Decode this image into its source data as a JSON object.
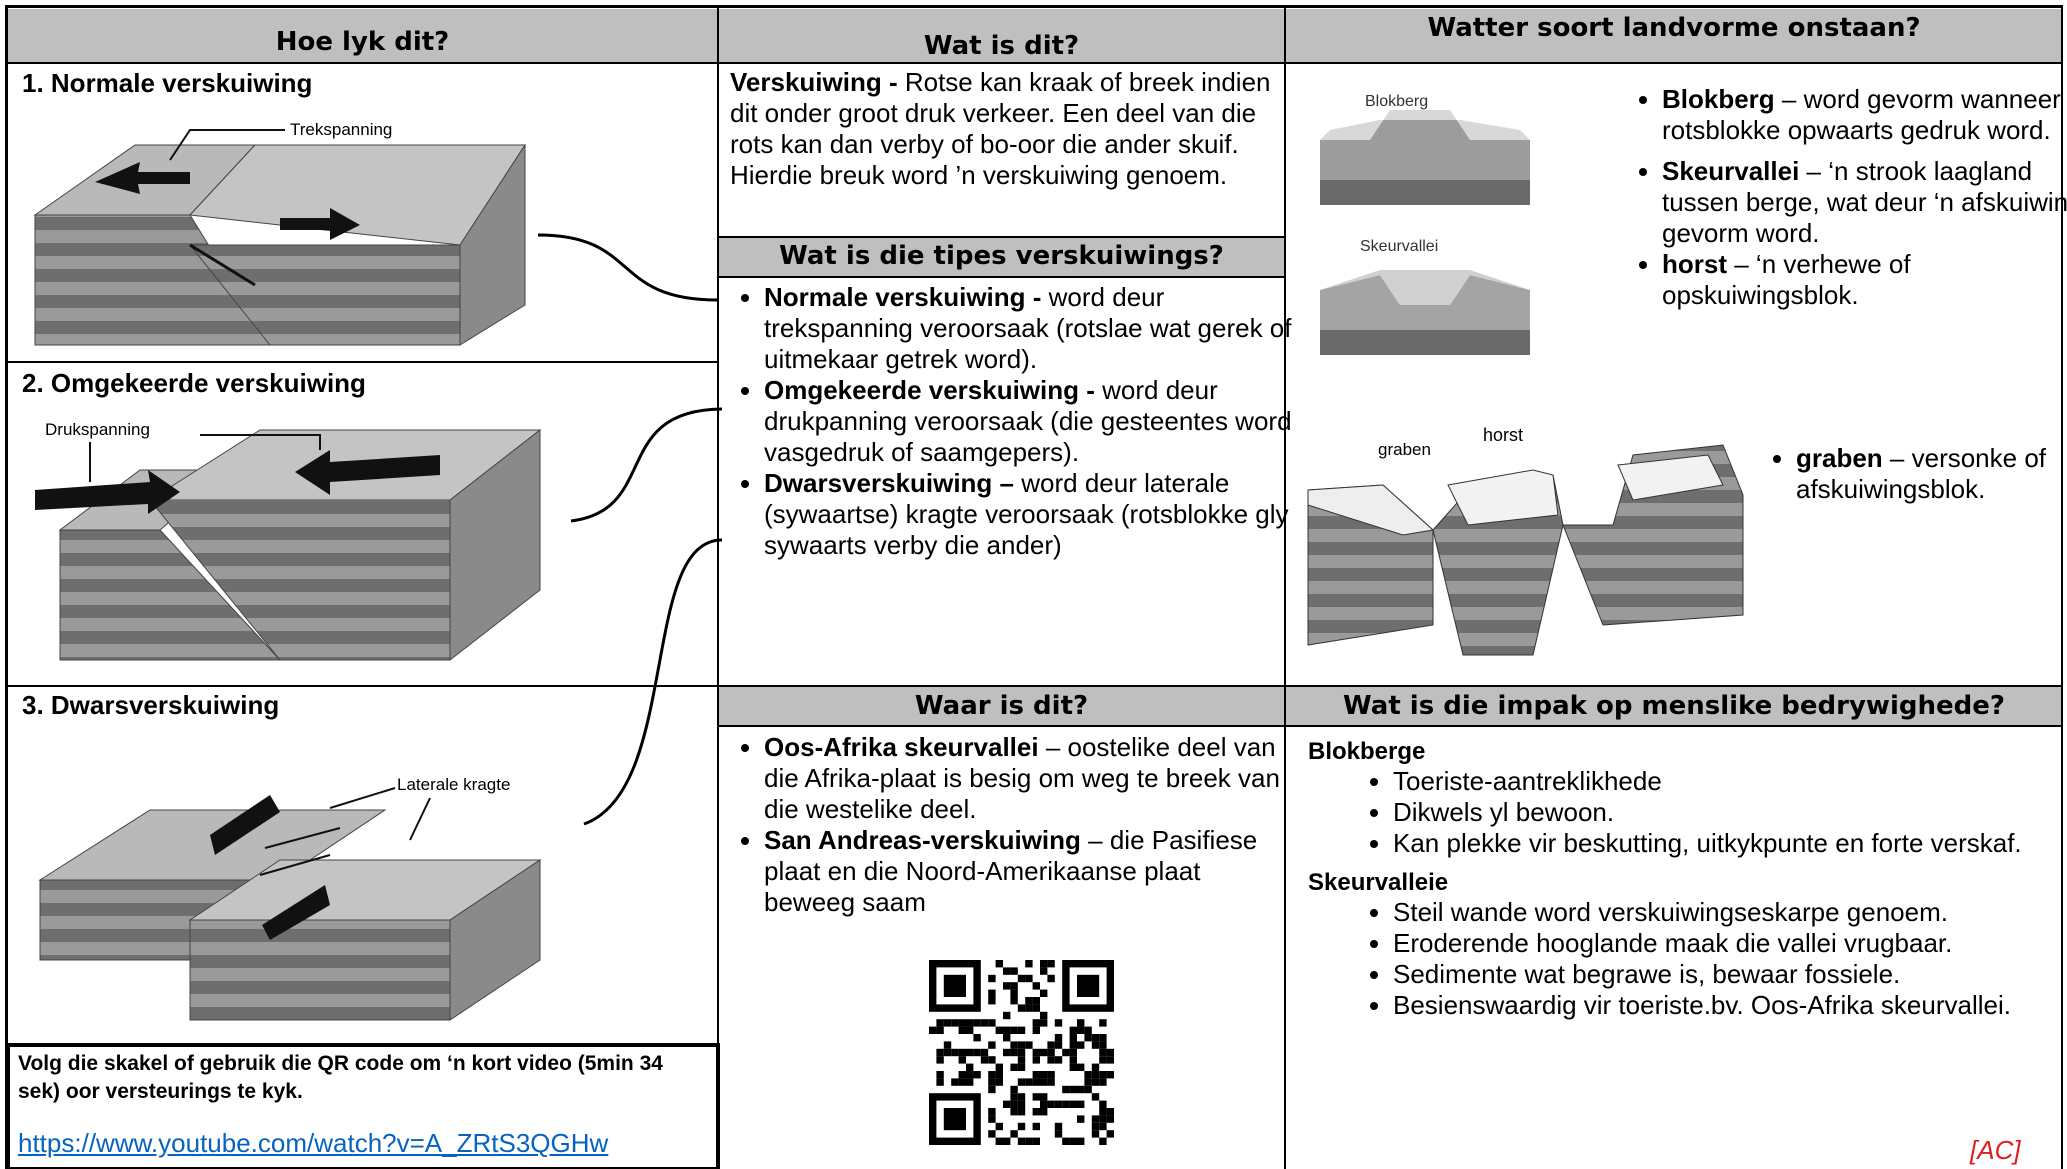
{
  "headers": [
    "Hoe lyk dit?",
    "Wat is dit?",
    "Watter soort landvorme onstaan?"
  ],
  "faults": [
    {
      "title": "1. Normale verskuiwing",
      "label": "Trekspanning"
    },
    {
      "title": "2. Omgekeerde verskuiwing",
      "label": "Drukspanning"
    },
    {
      "title": "3. Dwarsverskuiwing",
      "label": "Laterale kragte"
    }
  ],
  "definition": {
    "term": "Verskuiwing -",
    "text": "Rotse kan kraak of breek indien dit onder groot druk verkeer. Een deel van die rots kan dan verby of bo-oor die ander skuif. Hierdie breuk word ’n verskuiwing genoem."
  },
  "types": {
    "heading": "Wat is die tipes verskuiwings?",
    "items": [
      {
        "term": "Normale verskuiwing -",
        "text": "word deur trekspanning veroorsaak (rotslae wat gerek of uitmekaar getrek word)."
      },
      {
        "term": "Omgekeerde verskuiwing -",
        "text": "word deur drukpanning veroorsaak (die gesteentes word vasgedruk of saamgepers)."
      },
      {
        "term": "Dwarsverskuiwing –",
        "text": "word deur laterale (sywaartse) kragte veroorsaak (rotsblokke gly sywaarts verby die ander)"
      }
    ]
  },
  "landforms": {
    "image_labels": [
      "Blokberg",
      "Skeurvallei",
      "graben",
      "horst"
    ],
    "items": [
      {
        "term": "Blokberg",
        "text": "– word gevorm wanneer rotsblokke opwaarts gedruk word."
      },
      {
        "term": "Skeurvallei",
        "text": "– ‘n strook laagland tussen berge, wat deur ‘n afskuiwing gevorm word."
      },
      {
        "term": "horst",
        "text": "– ‘n  verhewe of opskuiwingsblok."
      },
      {
        "term": "graben",
        "text": "– versonke of afskuiwingsblok."
      }
    ]
  },
  "where": {
    "heading": "Waar is dit?",
    "items": [
      {
        "term": "Oos-Afrika skeurvallei",
        "text": "– oostelike deel van die Afrika-plaat is besig om weg te breek van die westelike deel."
      },
      {
        "term": "San Andreas-verskuiwing",
        "text": "– die Pasifiese plaat en die Noord-Amerikaanse plaat beweeg saam"
      }
    ]
  },
  "impact": {
    "heading": "Wat is die impak op menslike bedrywighede?",
    "groups": [
      {
        "title": "Blokberge",
        "items": [
          "Toeriste-aantreklikhede",
          "Dikwels yl bewoon.",
          "Kan plekke vir beskutting, uitkykpunte en forte verskaf."
        ]
      },
      {
        "title": "Skeurvalleie",
        "items": [
          "Steil wande word verskuiwingseskarpe genoem.",
          "Eroderende hooglande maak die vallei vrugbaar.",
          "Sedimente wat begrawe is, bewaar fossiele.",
          "Besienswaardig vir toeriste.bv. Oos-Afrika skeurvallei."
        ]
      }
    ],
    "credit": "[AC]"
  },
  "video": {
    "text": "Volg die skakel of gebruik die QR code om ‘n kort video (5min 34 sek) oor versteurings te kyk.",
    "link": "https://www.youtube.com/watch?v=A_ZRtS3QGHw"
  }
}
